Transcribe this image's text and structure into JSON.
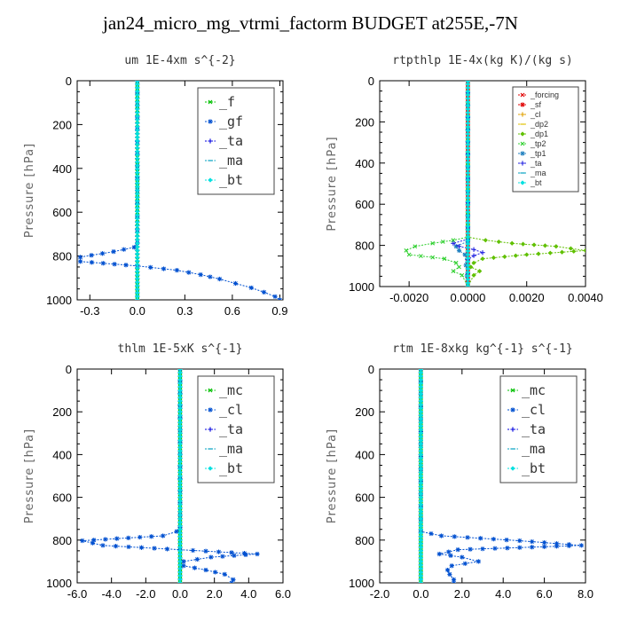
{
  "figure": {
    "title": "jan24_micro_mg_vtrmi_factorm  BUDGET at255E,-7N"
  },
  "chart_data": [
    {
      "type": "line",
      "panel": "top-left",
      "title": "um  1E-4xm s^{-2}",
      "ylabel": "Pressure [hPa]",
      "xlim": [
        -0.38,
        0.92
      ],
      "ylim": [
        1000,
        0
      ],
      "xticks": [
        -0.3,
        0.0,
        0.3,
        0.6,
        0.9
      ],
      "xtick_labels": [
        "-0.3",
        "0.0",
        "0.3",
        "0.6",
        "0.9"
      ],
      "yticks": [
        0,
        200,
        400,
        600,
        800,
        1000
      ],
      "ytick_labels": [
        "0",
        "200",
        "400",
        "600",
        "800",
        "1000"
      ],
      "legend": {
        "placement": "top-right",
        "size": "big",
        "entries": [
          "_f",
          "_gf",
          "_ta",
          "_ma",
          "_bt"
        ]
      },
      "series": [
        {
          "name": "_f",
          "color": "#00c000",
          "points": [
            [
              0,
              0
            ],
            [
              0,
              100
            ],
            [
              0,
              200
            ],
            [
              0,
              300
            ],
            [
              0,
              400
            ],
            [
              0,
              500
            ],
            [
              0,
              600
            ],
            [
              0,
              700
            ],
            [
              0,
              800
            ],
            [
              0,
              900
            ],
            [
              0,
              1000
            ]
          ]
        },
        {
          "name": "_gf",
          "color": "#0050d0",
          "points": [
            [
              0.0,
              0
            ],
            [
              0.0,
              500
            ],
            [
              0.0,
              740
            ],
            [
              -0.02,
              760
            ],
            [
              -0.15,
              780
            ],
            [
              -0.36,
              805
            ],
            [
              -0.36,
              825
            ],
            [
              0.0,
              845
            ],
            [
              0.25,
              865
            ],
            [
              0.4,
              885
            ],
            [
              0.52,
              905
            ],
            [
              0.62,
              925
            ],
            [
              0.72,
              945
            ],
            [
              0.8,
              965
            ],
            [
              0.87,
              985
            ],
            [
              0.9,
              1000
            ]
          ]
        },
        {
          "name": "_ta",
          "color": "#0000e0",
          "points": [
            [
              0,
              0
            ],
            [
              0,
              1000
            ]
          ]
        },
        {
          "name": "_ma",
          "color": "#00a0c0",
          "points": [
            [
              0,
              0
            ],
            [
              0,
              1000
            ]
          ]
        },
        {
          "name": "_bt",
          "color": "#00e0e0",
          "points": [
            [
              0,
              0
            ],
            [
              0,
              1000
            ]
          ]
        }
      ]
    },
    {
      "type": "line",
      "panel": "top-right",
      "title": "rtpthlp  1E-4x(kg K)/(kg s)",
      "ylabel": "Pressure [hPa]",
      "xlim": [
        -0.003,
        0.004
      ],
      "ylim": [
        1000,
        0
      ],
      "xticks": [
        -0.002,
        0.0,
        0.002,
        0.004
      ],
      "xtick_labels": [
        "-0.0020",
        "0.0000",
        "0.0020",
        "0.0040"
      ],
      "yticks": [
        0,
        200,
        400,
        600,
        800,
        1000
      ],
      "ytick_labels": [
        "0",
        "200",
        "400",
        "600",
        "800",
        "1000"
      ],
      "legend": {
        "placement": "top-right",
        "size": "small",
        "entries": [
          "_forcing",
          "_sf",
          "_cl",
          "_dp2",
          "_dp1",
          "_tp2",
          "_tp1",
          "_ta",
          "_ma",
          "_bt"
        ]
      },
      "series": [
        {
          "name": "_forcing",
          "color": "#e00000",
          "points": [
            [
              0,
              0
            ],
            [
              0,
              1000
            ]
          ]
        },
        {
          "name": "_sf",
          "color": "#e00000",
          "points": [
            [
              0,
              0
            ],
            [
              0,
              1000
            ]
          ]
        },
        {
          "name": "_cl",
          "color": "#e0a000",
          "points": [
            [
              0,
              0
            ],
            [
              0,
              1000
            ]
          ]
        },
        {
          "name": "_dp2",
          "color": "#e0c000",
          "points": [
            [
              0,
              0
            ],
            [
              0,
              1000
            ]
          ]
        },
        {
          "name": "_dp1",
          "color": "#60c000",
          "points": [
            [
              0,
              0
            ],
            [
              0.0,
              760
            ],
            [
              0.0006,
              775
            ],
            [
              0.0015,
              790
            ],
            [
              0.003,
              805
            ],
            [
              0.004,
              825
            ],
            [
              0.002,
              845
            ],
            [
              0.0005,
              865
            ],
            [
              0.0002,
              885
            ],
            [
              0.0001,
              905
            ],
            [
              0.0004,
              925
            ],
            [
              0.0002,
              945
            ],
            [
              0,
              1000
            ]
          ]
        },
        {
          "name": "_tp2",
          "color": "#30d030",
          "points": [
            [
              0,
              0
            ],
            [
              0.0,
              760
            ],
            [
              -0.0005,
              775
            ],
            [
              -0.0012,
              790
            ],
            [
              -0.0018,
              805
            ],
            [
              -0.0021,
              825
            ],
            [
              -0.002,
              845
            ],
            [
              -0.0008,
              865
            ],
            [
              -0.0004,
              885
            ],
            [
              -0.0003,
              905
            ],
            [
              -0.0005,
              925
            ],
            [
              -0.0002,
              945
            ],
            [
              0,
              1000
            ]
          ]
        },
        {
          "name": "_tp1",
          "color": "#2080c0",
          "points": [
            [
              0,
              0
            ],
            [
              0.0,
              780
            ],
            [
              -0.0004,
              805
            ],
            [
              -0.0003,
              825
            ],
            [
              -0.0001,
              845
            ],
            [
              0,
              1000
            ]
          ]
        },
        {
          "name": "_ta",
          "color": "#2020e0",
          "points": [
            [
              0,
              0
            ],
            [
              0.0,
              770
            ],
            [
              -0.0005,
              790
            ],
            [
              -0.0003,
              805
            ],
            [
              0.0002,
              820
            ],
            [
              0.0005,
              835
            ],
            [
              0.0002,
              850
            ],
            [
              0,
              870
            ],
            [
              0,
              1000
            ]
          ]
        },
        {
          "name": "_ma",
          "color": "#00a0c0",
          "points": [
            [
              0,
              0
            ],
            [
              0,
              1000
            ]
          ]
        },
        {
          "name": "_bt",
          "color": "#00e0e0",
          "points": [
            [
              0,
              0
            ],
            [
              0,
              1000
            ]
          ]
        }
      ]
    },
    {
      "type": "line",
      "panel": "bottom-left",
      "title": "thlm  1E-5xK s^{-1}",
      "ylabel": "Pressure [hPa]",
      "xlim": [
        -6.0,
        6.0
      ],
      "ylim": [
        1000,
        0
      ],
      "xticks": [
        -6,
        -4,
        -2,
        0,
        2,
        4,
        6
      ],
      "xtick_labels": [
        "-6.0",
        "-4.0",
        "-2.0",
        "0.0",
        "2.0",
        "4.0",
        "6.0"
      ],
      "yticks": [
        0,
        200,
        400,
        600,
        800,
        1000
      ],
      "ytick_labels": [
        "0",
        "200",
        "400",
        "600",
        "800",
        "1000"
      ],
      "legend": {
        "placement": "top-right",
        "size": "big",
        "entries": [
          "_mc",
          "_cl",
          "_ta",
          "_ma",
          "_bt"
        ]
      },
      "series": [
        {
          "name": "_mc",
          "color": "#00c000",
          "points": [
            [
              0,
              0
            ],
            [
              0,
              100
            ],
            [
              0,
              200
            ],
            [
              0,
              300
            ],
            [
              0,
              400
            ],
            [
              0,
              500
            ],
            [
              0,
              600
            ],
            [
              0,
              700
            ],
            [
              0,
              800
            ],
            [
              0,
              900
            ],
            [
              0,
              1000
            ]
          ]
        },
        {
          "name": "_cl",
          "color": "#0050d0",
          "points": [
            [
              0,
              0
            ],
            [
              0,
              740
            ],
            [
              -0.2,
              760
            ],
            [
              -1.0,
              780
            ],
            [
              -5.7,
              803
            ],
            [
              -4.5,
              825
            ],
            [
              0.0,
              845
            ],
            [
              4.5,
              865
            ],
            [
              1.8,
              880
            ],
            [
              0.2,
              900
            ],
            [
              0.2,
              920
            ],
            [
              1.5,
              940
            ],
            [
              2.6,
              960
            ],
            [
              3.1,
              985
            ],
            [
              3.0,
              1000
            ]
          ]
        },
        {
          "name": "_ta",
          "color": "#0000e0",
          "points": [
            [
              0,
              0
            ],
            [
              0,
              1000
            ]
          ]
        },
        {
          "name": "_ma",
          "color": "#00a0c0",
          "points": [
            [
              0,
              0
            ],
            [
              0,
              1000
            ]
          ]
        },
        {
          "name": "_bt",
          "color": "#00e0e0",
          "points": [
            [
              0,
              0
            ],
            [
              0,
              1000
            ]
          ]
        }
      ]
    },
    {
      "type": "line",
      "panel": "bottom-right",
      "title": "rtm  1E-8xkg kg^{-1} s^{-1}",
      "ylabel": "Pressure [hPa]",
      "xlim": [
        -2.0,
        8.0
      ],
      "ylim": [
        1000,
        0
      ],
      "xticks": [
        -2,
        0,
        2,
        4,
        6,
        8
      ],
      "xtick_labels": [
        "-2.0",
        "0.0",
        "2.0",
        "4.0",
        "6.0",
        "8.0"
      ],
      "yticks": [
        0,
        200,
        400,
        600,
        800,
        1000
      ],
      "ytick_labels": [
        "0",
        "200",
        "400",
        "600",
        "800",
        "1000"
      ],
      "legend": {
        "placement": "top-right",
        "size": "big",
        "entries": [
          "_mc",
          "_cl",
          "_ta",
          "_ma",
          "_bt"
        ]
      },
      "series": [
        {
          "name": "_mc",
          "color": "#00c000",
          "points": [
            [
              0,
              0
            ],
            [
              0,
              100
            ],
            [
              0,
              200
            ],
            [
              0,
              300
            ],
            [
              0,
              400
            ],
            [
              0,
              500
            ],
            [
              0,
              600
            ],
            [
              0,
              700
            ],
            [
              0,
              800
            ],
            [
              0,
              900
            ],
            [
              0,
              1000
            ]
          ]
        },
        {
          "name": "_cl",
          "color": "#0050d0",
          "points": [
            [
              0,
              0
            ],
            [
              0,
              760
            ],
            [
              1.0,
              780
            ],
            [
              4.8,
              803
            ],
            [
              7.8,
              825
            ],
            [
              1.8,
              845
            ],
            [
              0.9,
              865
            ],
            [
              2.0,
              880
            ],
            [
              2.8,
              900
            ],
            [
              1.5,
              920
            ],
            [
              1.3,
              940
            ],
            [
              1.4,
              960
            ],
            [
              1.6,
              985
            ],
            [
              1.6,
              1000
            ]
          ]
        },
        {
          "name": "_ta",
          "color": "#0000e0",
          "points": [
            [
              0,
              0
            ],
            [
              0,
              1000
            ]
          ]
        },
        {
          "name": "_ma",
          "color": "#00a0c0",
          "points": [
            [
              0,
              0
            ],
            [
              0,
              1000
            ]
          ]
        },
        {
          "name": "_bt",
          "color": "#00e0e0",
          "points": [
            [
              0,
              0
            ],
            [
              0,
              1000
            ]
          ]
        }
      ]
    }
  ]
}
